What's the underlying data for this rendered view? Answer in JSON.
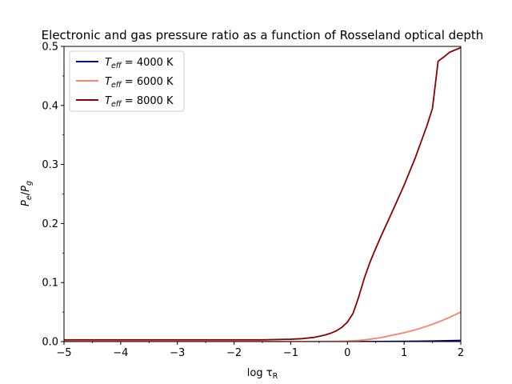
{
  "chart_data": {
    "type": "line",
    "title": "Electronic and gas pressure ratio as a function of Rosseland optical depth",
    "xlabel": {
      "main": "log τ",
      "sub": "R"
    },
    "ylabel": {
      "p": "P",
      "p_sub": "e",
      "slash": "/",
      "g": "P",
      "g_sub": "g"
    },
    "xlim": [
      -5,
      2
    ],
    "ylim": [
      0,
      0.5
    ],
    "xticks": [
      -5,
      -4,
      -3,
      -2,
      -1,
      0,
      1,
      2
    ],
    "xtick_labels": [
      "−5",
      "−4",
      "−3",
      "−2",
      "−1",
      "0",
      "1",
      "2"
    ],
    "yticks": [
      0.0,
      0.1,
      0.2,
      0.3,
      0.4,
      0.5
    ],
    "ytick_labels": [
      "0.0",
      "0.1",
      "0.2",
      "0.3",
      "0.4",
      "0.5"
    ],
    "grid": false,
    "legend_position": "top-left",
    "series": [
      {
        "legend": {
          "t": "T",
          "sub": "eff",
          "rest": " = 4000 K"
        },
        "color": "#00008b",
        "x": [
          -5,
          -4,
          -3,
          -2,
          -1,
          0,
          0.5,
          1,
          1.5,
          2
        ],
        "y": [
          0.0,
          0.0,
          0.0,
          0.0,
          0.0,
          0.0,
          0.0002,
          0.0005,
          0.001,
          0.002
        ]
      },
      {
        "legend": {
          "t": "T",
          "sub": "eff",
          "rest": " = 6000 K"
        },
        "color": "#fa8072",
        "x": [
          -5,
          -4,
          -3,
          -2,
          -1,
          -0.5,
          0,
          0.2,
          0.4,
          0.6,
          0.8,
          1.0,
          1.2,
          1.4,
          1.6,
          1.8,
          2.0
        ],
        "y": [
          0.0,
          0.0,
          0.0,
          0.0,
          0.0001,
          0.0003,
          0.0008,
          0.002,
          0.004,
          0.007,
          0.011,
          0.015,
          0.02,
          0.026,
          0.033,
          0.041,
          0.05
        ]
      },
      {
        "legend": {
          "t": "T",
          "sub": "eff",
          "rest": " = 8000 K"
        },
        "color": "#8b0000",
        "x": [
          -5,
          -4,
          -3,
          -2,
          -1.5,
          -1,
          -0.8,
          -0.6,
          -0.5,
          -0.4,
          -0.3,
          -0.2,
          -0.1,
          0,
          0.1,
          0.2,
          0.3,
          0.4,
          0.5,
          0.6,
          0.8,
          1.0,
          1.2,
          1.4,
          1.5,
          1.6,
          1.7,
          1.8,
          2.0
        ],
        "y": [
          0.003,
          0.003,
          0.003,
          0.003,
          0.003,
          0.004,
          0.005,
          0.007,
          0.009,
          0.011,
          0.014,
          0.018,
          0.024,
          0.033,
          0.048,
          0.076,
          0.108,
          0.135,
          0.158,
          0.18,
          0.222,
          0.265,
          0.312,
          0.365,
          0.395,
          0.475,
          0.482,
          0.49,
          0.498
        ]
      }
    ]
  }
}
